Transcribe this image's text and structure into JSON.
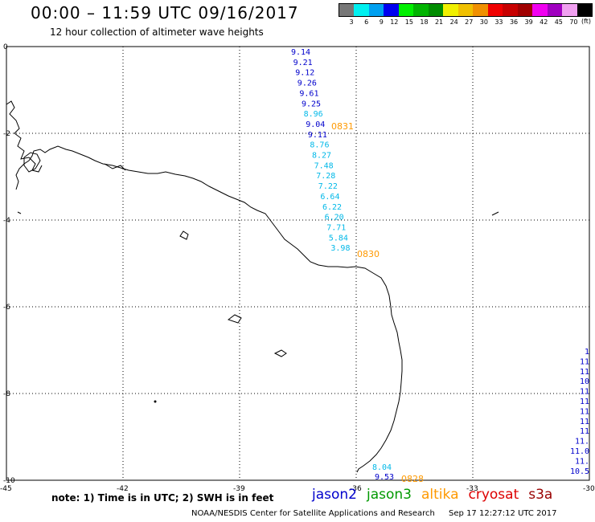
{
  "header": {
    "title": "00:00 – 11:59 UTC 09/16/2017",
    "subtitle": "12 hour collection of altimeter wave heights"
  },
  "legend": {
    "colors": [
      "#777777",
      "#00f0f0",
      "#00a0f0",
      "#0000f0",
      "#00f000",
      "#00b400",
      "#008c00",
      "#f0f000",
      "#f0c000",
      "#f09000",
      "#f00000",
      "#c80000",
      "#a00000",
      "#f000f0",
      "#a000c0",
      "#f0a0f0",
      "#000000"
    ],
    "labels": [
      "3",
      "6",
      "9",
      "12",
      "15",
      "18",
      "21",
      "24",
      "27",
      "30",
      "33",
      "36",
      "39",
      "42",
      "45",
      "70"
    ],
    "unit": "(ft)"
  },
  "map": {
    "lat_labels": [
      "0",
      "-2",
      "-4",
      "-6",
      "-8",
      "-10"
    ],
    "lon_labels": [
      "-45",
      "-42",
      "-39",
      "-36",
      "-33",
      "-30"
    ],
    "grid_color": "#000000"
  },
  "tracks": [
    {
      "satellite": "jason2",
      "color_dark": "#0000cc",
      "color_light": "#00b8e8",
      "time_stamp": "0831",
      "stamp_color": "#ff9900",
      "values": [
        "9.14",
        "9.21",
        "9.12",
        "9.26",
        "9.61",
        "9.25",
        "8.96",
        "9.04",
        "9.11",
        "8.76",
        "8.27",
        "7.48",
        "7.28",
        "7.22",
        "6.64",
        "6.22",
        "6.20",
        "7.71",
        "5.84",
        "3.98"
      ],
      "second_stamp": "0830"
    },
    {
      "satellite": "jason2",
      "time_stamp": "0828",
      "values": [
        "8.04",
        "9.53"
      ]
    },
    {
      "satellite": "jason2",
      "time_stamp": "",
      "values": [
        "1",
        "11",
        "11",
        "10",
        "11",
        "11",
        "11",
        "11",
        "11",
        "11.",
        "11.0",
        "11.",
        "10.5"
      ]
    }
  ],
  "note": "note: 1) Time is in UTC; 2) SWH is in feet",
  "satellites": [
    {
      "name": "jason2",
      "color": "#0000cc"
    },
    {
      "name": "jason3",
      "color": "#009900"
    },
    {
      "name": "altika",
      "color": "#ff9900"
    },
    {
      "name": "cryosat",
      "color": "#dd0000"
    },
    {
      "name": "s3a",
      "color": "#990000"
    }
  ],
  "footer": {
    "agency": "NOAA/NESDIS Center for Satellite Applications and Research",
    "timestamp": "Sep 17 12:27:12 UTC 2017"
  }
}
